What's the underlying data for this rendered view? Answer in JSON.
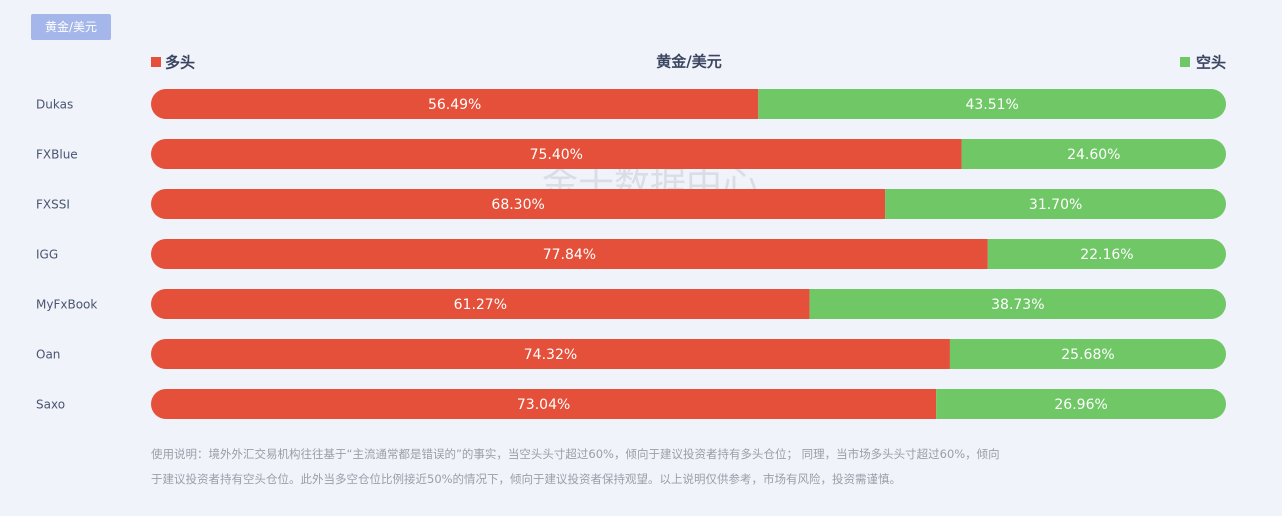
{
  "tab": "黄金/美元",
  "watermark": "金十数据中心",
  "chart_data": {
    "type": "stacked-bar-horizontal",
    "title": "黄金/美元",
    "categories": [
      "Dukas",
      "FXBlue",
      "FXSSI",
      "IGG",
      "MyFxBook",
      "Oan",
      "Saxo"
    ],
    "xlim": [
      0,
      100
    ],
    "legend": "top",
    "series": [
      {
        "name": "多头",
        "color": "#e4503a",
        "values": [
          56.49,
          75.4,
          68.3,
          77.84,
          61.27,
          74.32,
          73.04
        ],
        "value_labels": [
          "56.49%",
          "75.40%",
          "68.30%",
          "77.84%",
          "61.27%",
          "74.32%",
          "73.04%"
        ]
      },
      {
        "name": "空头",
        "color": "#6fc766",
        "values": [
          43.51,
          24.6,
          31.7,
          22.16,
          38.73,
          25.68,
          26.96
        ],
        "value_labels": [
          "43.51%",
          "24.60%",
          "31.70%",
          "22.16%",
          "38.73%",
          "25.68%",
          "26.96%"
        ]
      }
    ]
  },
  "note": [
    "使用说明：境外外汇交易机构往往基于“主流通常都是错误的”的事实，当空头头寸超过60%，倾向于建议投资者持有多头仓位； 同理，当市场多头头寸超过60%，倾向",
    "于建议投资者持有空头仓位。此外当多空仓位比例接近50%的情况下，倾向于建议投资者保持观望。以上说明仅供参考，市场有风险，投资需谨慎。"
  ]
}
